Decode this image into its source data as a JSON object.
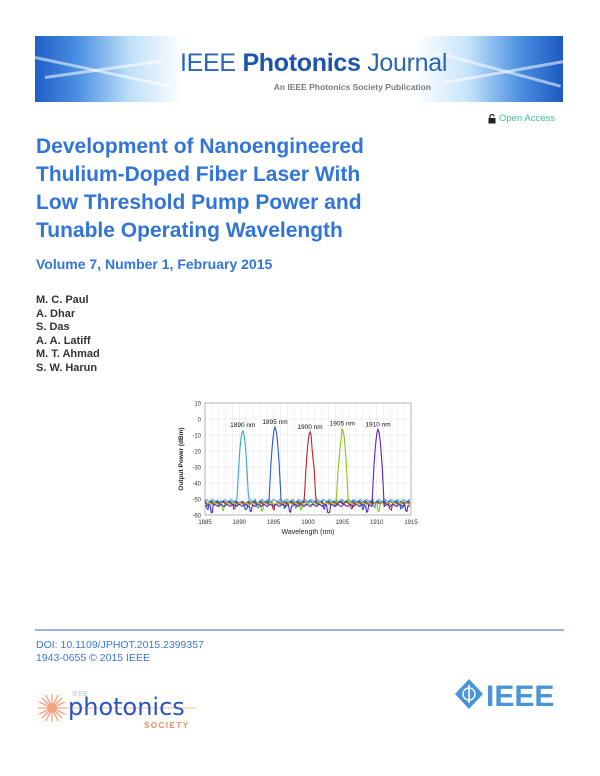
{
  "banner": {
    "journal_prefix": "IEEE",
    "journal_bold": "Photonics",
    "journal_suffix": "Journal",
    "subtitle": "An IEEE Photonics Society Publication"
  },
  "access": {
    "icon": "open-lock-icon",
    "label": "Open Access",
    "color": "#3cc39a"
  },
  "paper": {
    "title": "Development of Nanoengineered Thulium-Doped Fiber Laser With Low Threshold Pump Power and Tunable Operating Wavelength",
    "title_lines": [
      "Development of Nanoengineered",
      "Thulium-Doped Fiber Laser With",
      "Low Threshold Pump Power and",
      "Tunable Operating Wavelength"
    ],
    "volume": "Volume 7, Number 1, February 2015",
    "authors": [
      "M. C. Paul",
      "A. Dhar",
      "S. Das",
      "A. A. Latiff",
      "M. T. Ahmad",
      "S. W. Harun"
    ],
    "accent_color": "#3275d8"
  },
  "chart_data": {
    "type": "line",
    "title": "",
    "xlabel": "Wavelength (nm)",
    "ylabel": "Output Power (dBm)",
    "xlim": [
      1885,
      1915
    ],
    "ylim": [
      -60,
      10
    ],
    "xticks": [
      1885,
      1890,
      1895,
      1900,
      1905,
      1910,
      1915
    ],
    "yticks": [
      10,
      0,
      -10,
      -20,
      -30,
      -40,
      -50,
      -60
    ],
    "grid": true,
    "legend": "none",
    "annotations": [
      "1890 nm",
      "1895 nm",
      "1900 nm",
      "1905 nm",
      "1910 nm"
    ],
    "series": [
      {
        "name": "1890 nm",
        "color": "#3aa6c8",
        "peak_x": 1890.5,
        "peak_y": -7,
        "baseline": -51
      },
      {
        "name": "1895 nm",
        "color": "#2458d6",
        "peak_x": 1895.2,
        "peak_y": -5,
        "baseline": -52
      },
      {
        "name": "1900 nm",
        "color": "#c0202a",
        "peak_x": 1900.3,
        "peak_y": -8,
        "baseline": -52.5
      },
      {
        "name": "1905 nm",
        "color": "#8ac414",
        "peak_x": 1905.0,
        "peak_y": -6,
        "baseline": -53
      },
      {
        "name": "1910 nm",
        "color": "#5a22c0",
        "peak_x": 1910.2,
        "peak_y": -6.5,
        "baseline": -54
      }
    ]
  },
  "footer": {
    "doi": "DOI: 10.1109/JPHOT.2015.2399357",
    "issn": "1943-0655 © 2015 IEEE",
    "society_logo": {
      "small": "IEEE",
      "main": "photonics",
      "sub": "SOCIETY"
    },
    "ieee_logo": "IEEE"
  }
}
